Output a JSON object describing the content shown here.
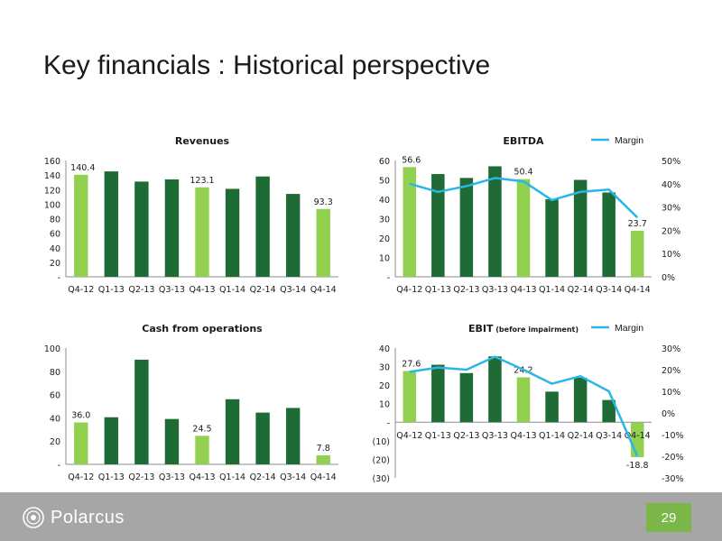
{
  "title": "Key financials : Historical perspective",
  "footer": {
    "logo_text": "Polarcus",
    "page_number": "29"
  },
  "colors": {
    "dark_green": "#1e6b35",
    "light_green": "#92d050",
    "margin_line": "#29b6e8"
  },
  "chart_data": [
    {
      "id": "revenues",
      "type": "bar",
      "title": "Revenues",
      "categories": [
        "Q4-12",
        "Q1-13",
        "Q2-13",
        "Q3-13",
        "Q4-13",
        "Q1-14",
        "Q2-14",
        "Q3-14",
        "Q4-14"
      ],
      "values": [
        140.4,
        145,
        131,
        134,
        123.1,
        121,
        138,
        114,
        93.3
      ],
      "highlight": [
        true,
        false,
        false,
        false,
        true,
        false,
        false,
        false,
        true
      ],
      "data_labels": [
        "140.4",
        "",
        "",
        "",
        "123.1",
        "",
        "",
        "",
        "93.3"
      ],
      "ylim": [
        0,
        160
      ],
      "yticks": [
        "-",
        "20",
        "40",
        "60",
        "80",
        "100",
        "120",
        "140",
        "160"
      ]
    },
    {
      "id": "ebitda",
      "type": "bar+line",
      "title": "EBITDA",
      "legend": "Margin",
      "categories": [
        "Q4-12",
        "Q1-13",
        "Q2-13",
        "Q3-13",
        "Q4-13",
        "Q1-14",
        "Q2-14",
        "Q3-14",
        "Q4-14"
      ],
      "values": [
        56.6,
        53,
        51,
        57,
        50.4,
        40,
        50,
        43.5,
        23.7
      ],
      "highlight": [
        true,
        false,
        false,
        false,
        true,
        false,
        false,
        false,
        true
      ],
      "data_labels": [
        "56.6",
        "",
        "",
        "",
        "50.4",
        "",
        "",
        "",
        "23.7"
      ],
      "margin": [
        0.4,
        0.365,
        0.39,
        0.425,
        0.41,
        0.33,
        0.365,
        0.375,
        0.255
      ],
      "ylim": [
        0,
        60
      ],
      "yticks": [
        "-",
        "10",
        "20",
        "30",
        "40",
        "50",
        "60"
      ],
      "y2lim": [
        0,
        0.5
      ],
      "y2ticks": [
        "0%",
        "10%",
        "20%",
        "30%",
        "40%",
        "50%"
      ]
    },
    {
      "id": "cfo",
      "type": "bar",
      "title": "Cash from operations",
      "categories": [
        "Q4-12",
        "Q1-13",
        "Q2-13",
        "Q3-13",
        "Q4-13",
        "Q1-14",
        "Q2-14",
        "Q3-14",
        "Q4-14"
      ],
      "values": [
        36.0,
        40.5,
        90,
        39,
        24.5,
        56,
        44.5,
        48.5,
        7.8
      ],
      "highlight": [
        true,
        false,
        false,
        false,
        true,
        false,
        false,
        false,
        true
      ],
      "data_labels": [
        "36.0",
        "",
        "",
        "",
        "24.5",
        "",
        "",
        "",
        "7.8"
      ],
      "ylim": [
        0,
        100
      ],
      "yticks": [
        "-",
        "20",
        "40",
        "60",
        "80",
        "100"
      ]
    },
    {
      "id": "ebit",
      "type": "bar+line",
      "title": "EBIT",
      "title_note": "(before impairment)",
      "legend": "Margin",
      "categories": [
        "Q4-12",
        "Q1-13",
        "Q2-13",
        "Q3-13",
        "Q4-13",
        "Q1-14",
        "Q2-14",
        "Q3-14",
        "Q4-14"
      ],
      "values": [
        27.6,
        31,
        26.5,
        35.5,
        24.2,
        16.5,
        24,
        12,
        -18.8
      ],
      "highlight": [
        true,
        false,
        false,
        false,
        true,
        false,
        false,
        false,
        true
      ],
      "data_labels": [
        "27.6",
        "",
        "",
        "",
        "24.2",
        "",
        "",
        "",
        "-18.8"
      ],
      "margin": [
        0.19,
        0.21,
        0.2,
        0.26,
        0.2,
        0.135,
        0.17,
        0.1,
        -0.2
      ],
      "ylim": [
        -30,
        40
      ],
      "yticks": [
        "(30)",
        "(20)",
        "(10)",
        "-",
        "10",
        "20",
        "30",
        "40"
      ],
      "y2lim": [
        -0.3,
        0.3
      ],
      "y2ticks": [
        "-30%",
        "-20%",
        "-10%",
        "0%",
        "10%",
        "20%",
        "30%"
      ]
    }
  ]
}
